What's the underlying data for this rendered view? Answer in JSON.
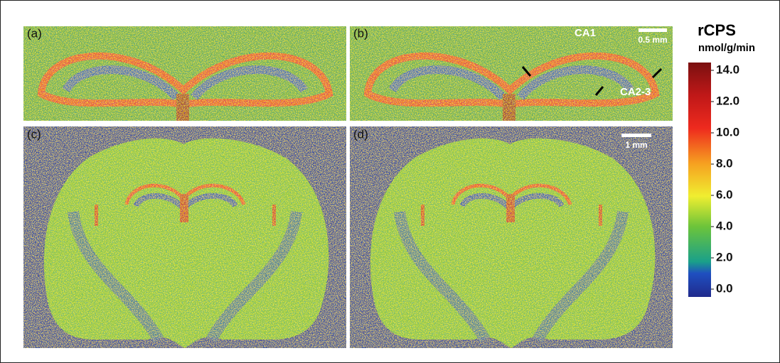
{
  "panels": [
    {
      "label": "(a)"
    },
    {
      "label": "(b)"
    },
    {
      "label": "(c)"
    },
    {
      "label": "(d)"
    }
  ],
  "annotations": {
    "ca1": "CA1",
    "ca23": "CA2-3",
    "scale_small": "0.5 mm",
    "scale_large": "1 mm"
  },
  "colorbar": {
    "title": "rCPS",
    "unit": "nmol/g/min",
    "ticks": [
      {
        "value": 14,
        "label": "14.0"
      },
      {
        "value": 12,
        "label": "12.0"
      },
      {
        "value": 10,
        "label": "10.0"
      },
      {
        "value": 8,
        "label": "8.0"
      },
      {
        "value": 6,
        "label": "6.0"
      },
      {
        "value": 4,
        "label": "4.0"
      },
      {
        "value": 2,
        "label": "2.0"
      },
      {
        "value": 0,
        "label": "0.0"
      }
    ]
  }
}
